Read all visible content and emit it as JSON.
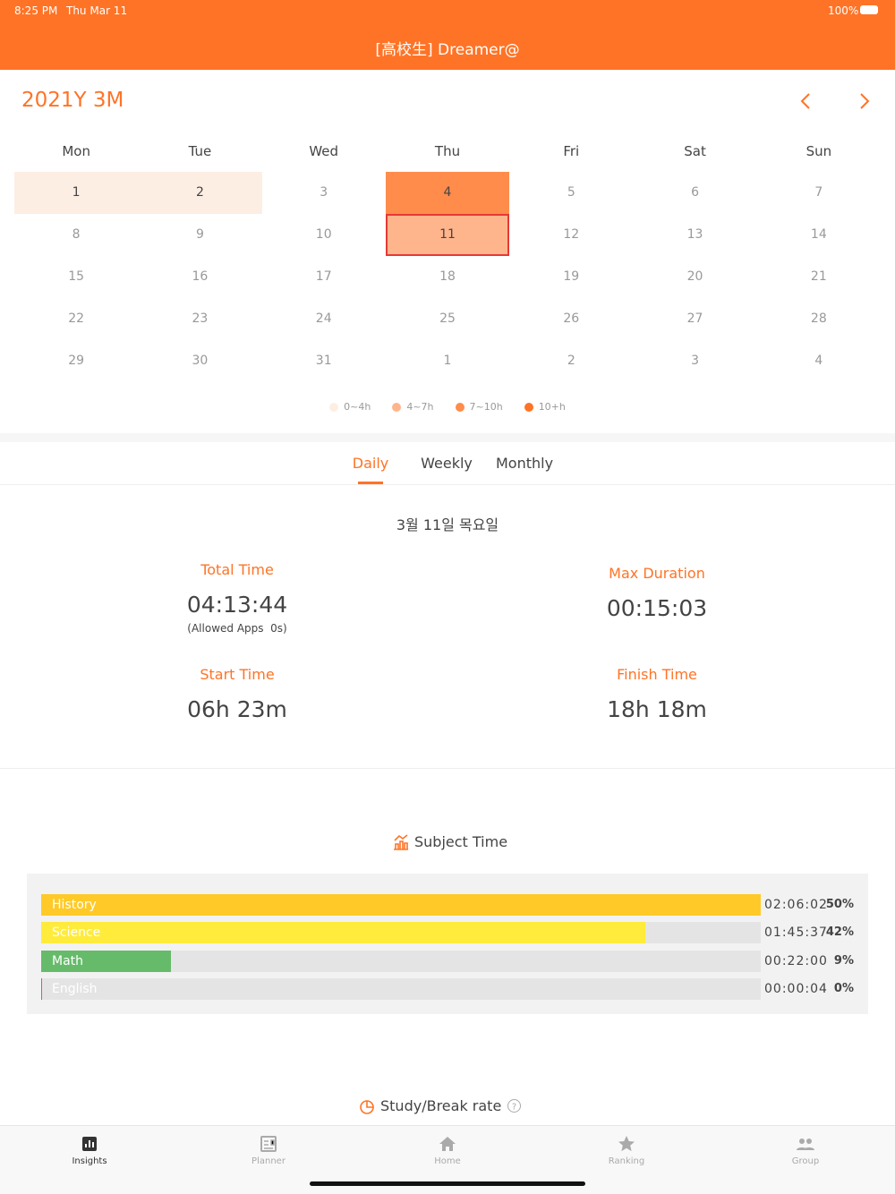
{
  "status_bar": {
    "time": "8:25 PM",
    "date": "Thu Mar 11",
    "battery": "100%"
  },
  "header": {
    "title": "[高校生] Dreamer@"
  },
  "calendar": {
    "month": "2021Y 3M",
    "weekdays": [
      "Mon",
      "Tue",
      "Wed",
      "Thu",
      "Fri",
      "Sat",
      "Sun"
    ],
    "days": [
      {
        "label": "1",
        "level": 0
      },
      {
        "label": "2",
        "level": 0
      },
      {
        "label": "3",
        "level": null
      },
      {
        "label": "4",
        "level": 2
      },
      {
        "label": "5",
        "level": null
      },
      {
        "label": "6",
        "level": null
      },
      {
        "label": "7",
        "level": null
      },
      {
        "label": "8",
        "level": null
      },
      {
        "label": "9",
        "level": null
      },
      {
        "label": "10",
        "level": null
      },
      {
        "label": "11",
        "level": 1,
        "selected": true
      },
      {
        "label": "12",
        "level": null
      },
      {
        "label": "13",
        "level": null
      },
      {
        "label": "14",
        "level": null
      },
      {
        "label": "15",
        "level": null
      },
      {
        "label": "16",
        "level": null
      },
      {
        "label": "17",
        "level": null
      },
      {
        "label": "18",
        "level": null
      },
      {
        "label": "19",
        "level": null
      },
      {
        "label": "20",
        "level": null
      },
      {
        "label": "21",
        "level": null
      },
      {
        "label": "22",
        "level": null
      },
      {
        "label": "23",
        "level": null
      },
      {
        "label": "24",
        "level": null
      },
      {
        "label": "25",
        "level": null
      },
      {
        "label": "26",
        "level": null
      },
      {
        "label": "27",
        "level": null
      },
      {
        "label": "28",
        "level": null
      },
      {
        "label": "29",
        "level": null
      },
      {
        "label": "30",
        "level": null
      },
      {
        "label": "31",
        "level": null
      },
      {
        "label": "1",
        "level": null
      },
      {
        "label": "2",
        "level": null
      },
      {
        "label": "3",
        "level": null
      },
      {
        "label": "4",
        "level": null
      }
    ],
    "legend": [
      {
        "label": "0~4h",
        "color": "#fdeee4"
      },
      {
        "label": "4~7h",
        "color": "#ffb58c"
      },
      {
        "label": "7~10h",
        "color": "#ff8c4a"
      },
      {
        "label": "10+h",
        "color": "#ff7326"
      }
    ]
  },
  "tabs": {
    "items": [
      "Daily",
      "Weekly",
      "Monthly"
    ],
    "active": 0
  },
  "daily": {
    "date": "3월 11일 목요일",
    "stats": [
      {
        "label": "Total Time",
        "value": "04:13:44",
        "note": "(Allowed Apps  0s)"
      },
      {
        "label": "Max Duration",
        "value": "00:15:03"
      },
      {
        "label": "Start Time",
        "value": "06h 23m"
      },
      {
        "label": "Finish Time",
        "value": "18h 18m"
      }
    ]
  },
  "subject_time": {
    "title": "Subject Time",
    "subjects": [
      {
        "name": "History",
        "time": "02:06:02",
        "percent": 50,
        "percent_label": "50%",
        "color": "#ffca28"
      },
      {
        "name": "Science",
        "time": "01:45:37",
        "percent": 42,
        "percent_label": "42%",
        "color": "#ffeb3b"
      },
      {
        "name": "Math",
        "time": "00:22:00",
        "percent": 9,
        "percent_label": "9%",
        "color": "#66bb6a"
      },
      {
        "name": "English",
        "time": "00:00:04",
        "percent": 0,
        "percent_label": "0%",
        "color": "#ef5350"
      }
    ]
  },
  "study_break": {
    "title": "Study/Break rate"
  },
  "tab_bar": {
    "items": [
      "Insights",
      "Planner",
      "Home",
      "Ranking",
      "Group"
    ],
    "active": 0
  }
}
